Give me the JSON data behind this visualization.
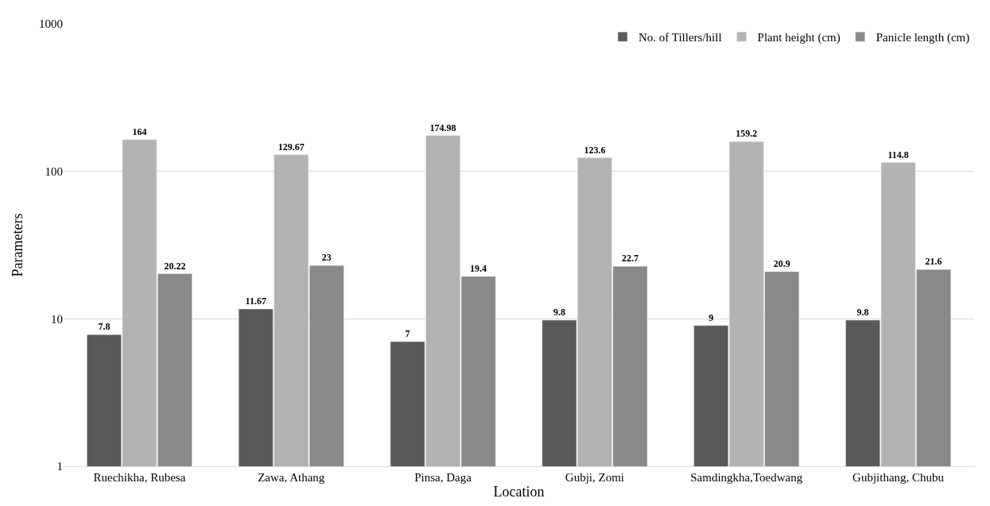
{
  "chart_data": {
    "type": "bar",
    "xlabel": "Location",
    "ylabel": "Parameters",
    "categories": [
      "Ruechikha, Rubesa",
      "Zawa, Athang",
      "Pinsa, Daga",
      "Gubji, Zomi",
      "Samdingkha,Toedwang",
      "Gubjithang, Chubu"
    ],
    "series": [
      {
        "name": "No. of Tillers/hill",
        "color": "#595959",
        "values": [
          7.8,
          11.67,
          7,
          9.8,
          9,
          9.8
        ]
      },
      {
        "name": "Plant height (cm)",
        "color": "#b3b3b3",
        "values": [
          164,
          129.67,
          174.98,
          123.6,
          159.2,
          114.8
        ]
      },
      {
        "name": "Panicle length (cm)",
        "color": "#898989",
        "values": [
          20.22,
          23,
          19.4,
          22.7,
          20.9,
          21.6
        ]
      }
    ],
    "log": true,
    "ylim": [
      1,
      1000
    ],
    "yticks": [
      1,
      10,
      100,
      1000
    ],
    "grid": "y",
    "legend": "top right",
    "data_labels": true
  }
}
